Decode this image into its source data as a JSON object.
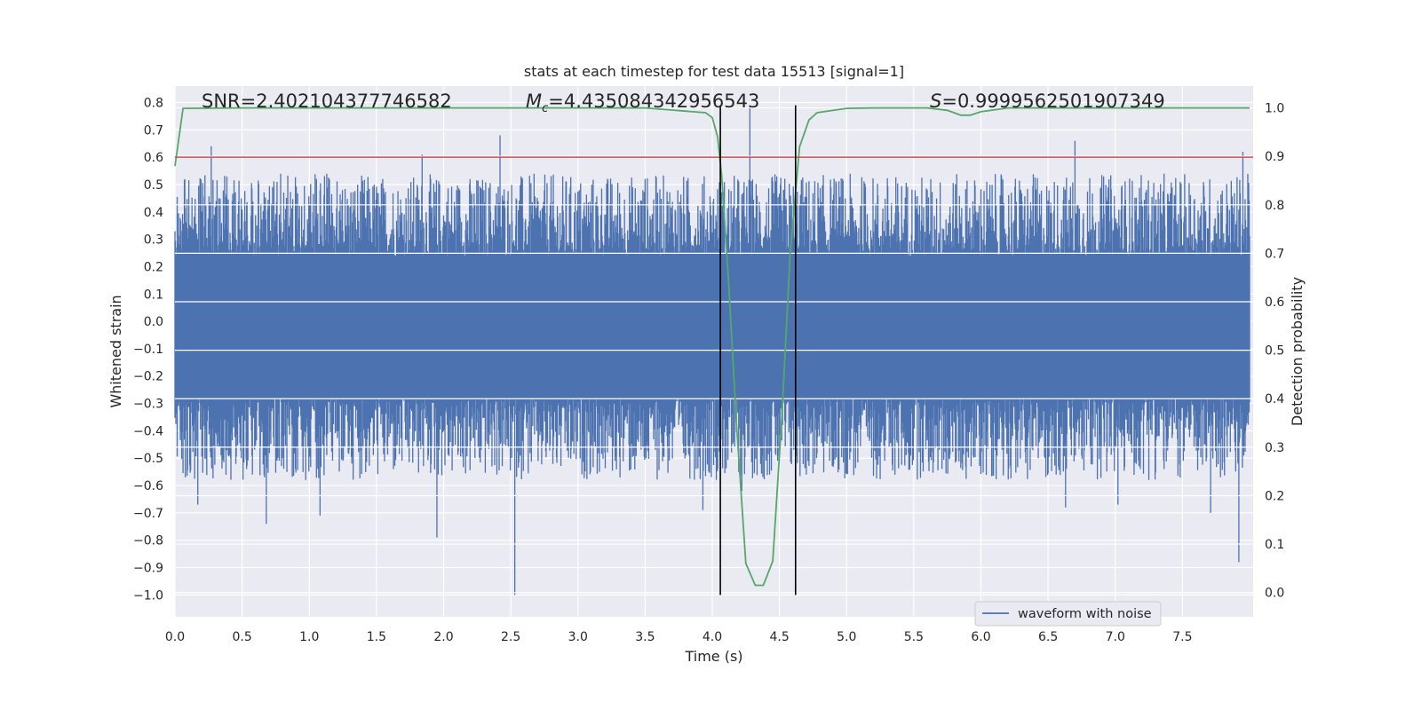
{
  "chart_data": {
    "type": "line",
    "title": "stats at each timestep for test data 15513 [signal=1]",
    "xlabel": "Time (s)",
    "ylabel_left": "Whitened strain",
    "ylabel_right": "Detection probability",
    "xlim": [
      0.0,
      8.0
    ],
    "ylim_left": [
      -1.08,
      0.86
    ],
    "ylim_right": [
      -0.05,
      1.045
    ],
    "x_ticks": [
      "0.0",
      "0.5",
      "1.0",
      "1.5",
      "2.0",
      "2.5",
      "3.0",
      "3.5",
      "4.0",
      "4.5",
      "5.0",
      "5.5",
      "6.0",
      "6.5",
      "7.0",
      "7.5"
    ],
    "y_ticks_left": [
      "0.8",
      "0.7",
      "0.6",
      "0.5",
      "0.4",
      "0.3",
      "0.2",
      "0.1",
      "0.0",
      "-0.1",
      "-0.2",
      "-0.3",
      "-0.4",
      "-0.5",
      "-0.6",
      "-0.7",
      "-0.8",
      "-0.9",
      "-1.0"
    ],
    "y_ticks_right": [
      "1.0",
      "0.9",
      "0.8",
      "0.7",
      "0.6",
      "0.5",
      "0.4",
      "0.3",
      "0.2",
      "0.1",
      "0.0"
    ],
    "grid": true,
    "legend_position": "lower-right",
    "annotations": {
      "snr": "SNR=2.402104377746582",
      "mc_symbol": "M",
      "mc_subscript": "c",
      "mc_value": "=4.435084342956543",
      "s_symbol": "S",
      "s_value": "=0.9999562501907349"
    },
    "series": [
      {
        "name": "waveform with noise",
        "axis": "left",
        "color": "#4c72b0",
        "kind": "noisy strain",
        "core_band": [
          -0.28,
          0.24
        ],
        "t_range": [
          0.0,
          8.0
        ],
        "spikes": [
          [
            0.27,
            0.64
          ],
          [
            0.17,
            -0.67
          ],
          [
            0.68,
            -0.74
          ],
          [
            1.08,
            -0.71
          ],
          [
            1.84,
            0.61
          ],
          [
            1.95,
            -0.79
          ],
          [
            2.42,
            0.68
          ],
          [
            2.53,
            -1.0
          ],
          [
            3.5,
            0.52
          ],
          [
            3.93,
            -0.69
          ],
          [
            4.28,
            0.79
          ],
          [
            4.22,
            -0.62
          ],
          [
            6.7,
            0.66
          ],
          [
            6.63,
            -0.68
          ],
          [
            7.95,
            0.62
          ],
          [
            7.92,
            -0.88
          ],
          [
            7.71,
            -0.7
          ],
          [
            6.56,
            -0.56
          ],
          [
            7.02,
            -0.67
          ]
        ]
      },
      {
        "name": "",
        "axis": "right",
        "color": "#55a868",
        "x": [
          0.0,
          0.06,
          0.5,
          1.0,
          2.0,
          3.0,
          3.5,
          3.95,
          4.0,
          4.04,
          4.07,
          4.12,
          4.18,
          4.25,
          4.32,
          4.38,
          4.45,
          4.52,
          4.58,
          4.65,
          4.72,
          4.78,
          4.85,
          5.0,
          5.2,
          5.6,
          5.75,
          5.85,
          5.92,
          6.0,
          6.2,
          7.0,
          8.0
        ],
        "y": [
          0.88,
          0.999,
          1.0,
          1.0,
          1.0,
          1.0,
          1.0,
          0.99,
          0.98,
          0.94,
          0.86,
          0.65,
          0.35,
          0.06,
          0.015,
          0.015,
          0.065,
          0.37,
          0.7,
          0.92,
          0.975,
          0.99,
          0.993,
          0.999,
          1.0,
          1.0,
          0.995,
          0.985,
          0.985,
          0.992,
          1.0,
          1.0,
          1.0
        ]
      },
      {
        "name": "",
        "axis": "left",
        "kind": "threshold",
        "color": "#c44e52",
        "value": 0.6
      },
      {
        "name": "",
        "kind": "vertical markers",
        "color": "#000000",
        "x": [
          4.06,
          4.62
        ],
        "y_left": [
          -1.0,
          0.79
        ]
      }
    ]
  }
}
